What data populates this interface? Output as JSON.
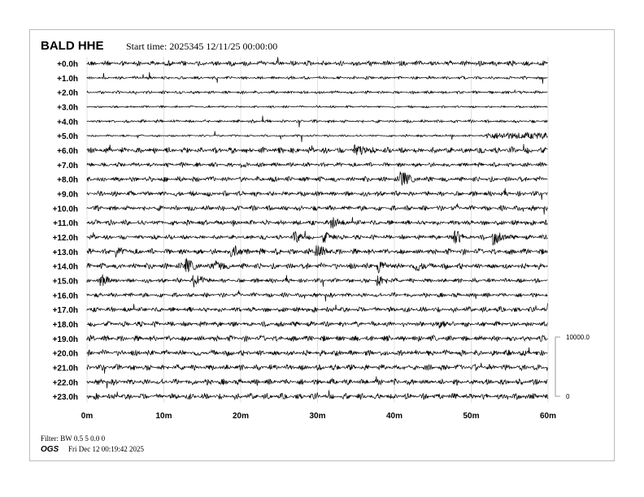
{
  "header": {
    "station": "BALD HHE",
    "start_time": "Start time: 2025345 12/11/25 00:00:00"
  },
  "footer": {
    "filter": "Filter: BW 0.5 5 0.0 0",
    "org": "OGS",
    "timestamp": "Fri Dec 12 00:19:42 2025"
  },
  "chart_data": {
    "type": "helicorder",
    "row_labels": [
      "+0.0h",
      "+1.0h",
      "+2.0h",
      "+3.0h",
      "+4.0h",
      "+5.0h",
      "+6.0h",
      "+7.0h",
      "+8.0h",
      "+9.0h",
      "+10.0h",
      "+11.0h",
      "+12.0h",
      "+13.0h",
      "+14.0h",
      "+15.0h",
      "+16.0h",
      "+17.0h",
      "+18.0h",
      "+19.0h",
      "+20.0h",
      "+21.0h",
      "+22.0h",
      "+23.0h"
    ],
    "x_ticks": [
      "0m",
      "10m",
      "20m",
      "30m",
      "40m",
      "50m",
      "60m"
    ],
    "xlim_minutes": [
      0,
      60
    ],
    "scale_bar": {
      "top_label": "10000.0",
      "bottom_label": "0"
    },
    "noise_amplitude_counts": [
      480,
      270,
      270,
      200,
      270,
      200,
      550,
      410,
      480,
      480,
      480,
      480,
      410,
      550,
      550,
      410,
      410,
      480,
      480,
      550,
      550,
      550,
      550,
      550
    ],
    "late_noise": {
      "hour": 5,
      "from_minute": 52,
      "amplitude_counts": 550
    },
    "events": [
      {
        "hour": 6,
        "minute": 35,
        "amplitude_counts": 1400
      },
      {
        "hour": 8,
        "minute": 41,
        "amplitude_counts": 1600
      },
      {
        "hour": 11,
        "minute": 32,
        "amplitude_counts": 1100
      },
      {
        "hour": 12,
        "minute": 27,
        "amplitude_counts": 1300
      },
      {
        "hour": 12,
        "minute": 31,
        "amplitude_counts": 1100
      },
      {
        "hour": 12,
        "minute": 48,
        "amplitude_counts": 1300
      },
      {
        "hour": 12,
        "minute": 53,
        "amplitude_counts": 1500
      },
      {
        "hour": 13,
        "minute": 4,
        "amplitude_counts": 1000
      },
      {
        "hour": 13,
        "minute": 19,
        "amplitude_counts": 1300
      },
      {
        "hour": 13,
        "minute": 30,
        "amplitude_counts": 1500
      },
      {
        "hour": 14,
        "minute": 13,
        "amplitude_counts": 1400
      },
      {
        "hour": 14,
        "minute": 17,
        "amplitude_counts": 1200
      },
      {
        "hour": 14,
        "minute": 38,
        "amplitude_counts": 1200
      },
      {
        "hour": 14,
        "minute": 43,
        "amplitude_counts": 1000
      },
      {
        "hour": 15,
        "minute": 2,
        "amplitude_counts": 1100
      },
      {
        "hour": 15,
        "minute": 14,
        "amplitude_counts": 1500
      },
      {
        "hour": 15,
        "minute": 38,
        "amplitude_counts": 1200
      },
      {
        "hour": 18,
        "minute": 46,
        "amplitude_counts": 900
      }
    ],
    "grid": true,
    "trace_color": "#000000",
    "grid_color": "#cccccc"
  }
}
